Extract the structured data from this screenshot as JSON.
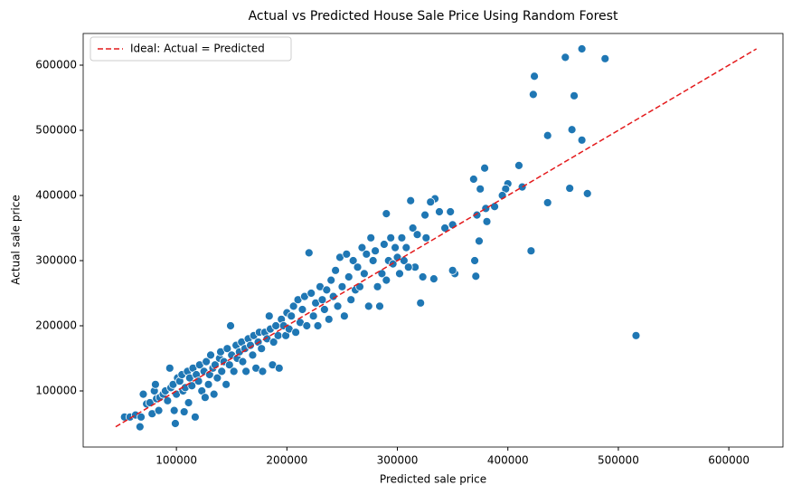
{
  "chart_data": {
    "type": "scatter",
    "title": "Actual vs Predicted House Sale Price Using Random Forest",
    "x_label": "Predicted sale price",
    "y_label": "Actual sale price",
    "color": "#1f77b4",
    "legend": "upper left",
    "xlim": [
      15600,
      649000
    ],
    "ylim": [
      13900,
      648600
    ],
    "xticks": [
      100000,
      200000,
      300000,
      400000,
      500000,
      600000
    ],
    "yticks": [
      100000,
      200000,
      300000,
      400000,
      500000,
      600000
    ],
    "reference_line": {
      "label": "Ideal: Actual = Predicted",
      "color": "#e41a1c",
      "style": "dashed",
      "x": [
        45000,
        625000
      ],
      "y": [
        45000,
        625000
      ]
    },
    "x": [
      53000,
      58000,
      63000,
      67000,
      68000,
      70000,
      73000,
      76000,
      78000,
      80000,
      81000,
      82000,
      84000,
      85000,
      88000,
      90000,
      92000,
      94000,
      95000,
      97000,
      98000,
      99000,
      100000,
      101000,
      103000,
      105000,
      106000,
      107000,
      108000,
      110000,
      111000,
      112000,
      114000,
      115000,
      117000,
      118000,
      120000,
      121000,
      123000,
      125000,
      126000,
      127000,
      129000,
      130000,
      131000,
      133000,
      134000,
      135000,
      137000,
      139000,
      140000,
      141000,
      143000,
      145000,
      146000,
      148000,
      149000,
      150000,
      152000,
      154000,
      155000,
      157000,
      159000,
      160000,
      162000,
      163000,
      165000,
      167000,
      169000,
      170000,
      172000,
      174000,
      175000,
      177000,
      178000,
      180000,
      182000,
      184000,
      185000,
      187000,
      188000,
      190000,
      192000,
      193000,
      195000,
      197000,
      199000,
      200000,
      202000,
      204000,
      206000,
      208000,
      210000,
      212000,
      214000,
      216000,
      218000,
      220000,
      222000,
      224000,
      226000,
      228000,
      230000,
      232000,
      234000,
      236000,
      238000,
      240000,
      242000,
      244000,
      246000,
      248000,
      250000,
      252000,
      254000,
      256000,
      258000,
      260000,
      262000,
      264000,
      266000,
      268000,
      270000,
      272000,
      274000,
      276000,
      278000,
      280000,
      282000,
      284000,
      286000,
      288000,
      290000,
      292000,
      294000,
      296000,
      298000,
      300000,
      302000,
      304000,
      306000,
      308000,
      314000,
      316000,
      318000,
      326000,
      516000,
      488000,
      467000,
      452000,
      424000,
      423000,
      460000,
      458000,
      467000,
      436000,
      472000,
      456000,
      436000,
      421000,
      413000,
      410000,
      400000,
      398000,
      395000,
      388000,
      381000,
      379000,
      380000,
      375000,
      369000,
      372000,
      374000,
      370000,
      371000,
      352000,
      350000,
      350000,
      348000,
      343000,
      338000,
      334000,
      330000,
      333000,
      325000,
      321000,
      323000,
      312000,
      310000,
      290000
    ],
    "values": [
      60000,
      60000,
      63000,
      45000,
      60000,
      95000,
      80000,
      82000,
      65000,
      100000,
      110000,
      88000,
      70000,
      90000,
      95000,
      100000,
      85000,
      135000,
      105000,
      110000,
      70000,
      50000,
      95000,
      120000,
      115000,
      125000,
      100000,
      68000,
      105000,
      130000,
      82000,
      120000,
      108000,
      135000,
      60000,
      125000,
      115000,
      140000,
      100000,
      130000,
      90000,
      145000,
      110000,
      125000,
      155000,
      135000,
      95000,
      140000,
      120000,
      150000,
      160000,
      130000,
      145000,
      110000,
      165000,
      140000,
      200000,
      155000,
      130000,
      170000,
      150000,
      160000,
      175000,
      145000,
      165000,
      130000,
      180000,
      170000,
      155000,
      185000,
      135000,
      175000,
      190000,
      165000,
      130000,
      190000,
      180000,
      215000,
      195000,
      140000,
      175000,
      200000,
      185000,
      135000,
      210000,
      200000,
      185000,
      220000,
      195000,
      215000,
      230000,
      190000,
      240000,
      205000,
      225000,
      245000,
      200000,
      312000,
      250000,
      215000,
      235000,
      200000,
      260000,
      240000,
      225000,
      255000,
      210000,
      270000,
      245000,
      285000,
      230000,
      305000,
      260000,
      215000,
      310000,
      275000,
      240000,
      300000,
      255000,
      290000,
      260000,
      320000,
      280000,
      310000,
      230000,
      335000,
      300000,
      315000,
      260000,
      230000,
      280000,
      325000,
      270000,
      300000,
      335000,
      295000,
      320000,
      305000,
      280000,
      335000,
      300000,
      320000,
      350000,
      290000,
      340000,
      335000,
      185000,
      610000,
      625000,
      612000,
      583000,
      555000,
      553000,
      501000,
      485000,
      492000,
      403000,
      411000,
      389000,
      315000,
      413000,
      446000,
      418000,
      410000,
      400000,
      383000,
      360000,
      442000,
      380000,
      410000,
      425000,
      370000,
      330000,
      300000,
      276000,
      280000,
      285000,
      355000,
      375000,
      350000,
      375000,
      395000,
      390000,
      272000,
      370000,
      235000,
      275000,
      392000,
      290000,
      372000
    ]
  }
}
